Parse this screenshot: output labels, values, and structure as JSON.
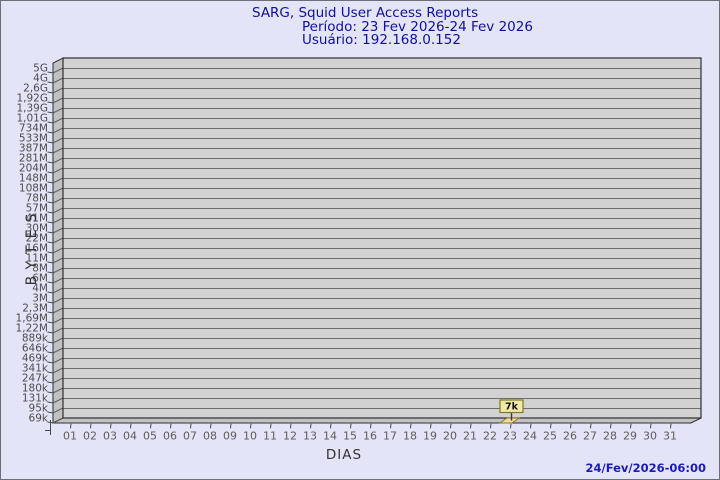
{
  "header": {
    "title": "SARG, Squid User Access Reports",
    "period": "Período: 23 Fev 2026-24 Fev 2026",
    "user": "Usuário: 192.168.0.152"
  },
  "footer": {
    "timestamp": "24/Fev/2026-06:00"
  },
  "chart_data": {
    "type": "bar",
    "title": "SARG, Squid User Access Reports",
    "subtitle": "Período: 23 Fev 2026-24 Fev 2026",
    "user": "Usuário: 192.168.0.152",
    "xlabel": "DIAS",
    "ylabel": "BYTES",
    "y_scale": "logarithmic",
    "ylim_labels": [
      "69k",
      "5G"
    ],
    "grid": "horizontal",
    "style": "3d-bar",
    "x_categories": [
      "01",
      "02",
      "03",
      "04",
      "05",
      "06",
      "07",
      "08",
      "09",
      "10",
      "11",
      "12",
      "13",
      "14",
      "15",
      "16",
      "17",
      "18",
      "19",
      "20",
      "21",
      "22",
      "23",
      "24",
      "25",
      "26",
      "27",
      "28",
      "29",
      "30",
      "31"
    ],
    "y_tick_labels": [
      "5G",
      "4G",
      "2,6G",
      "1,92G",
      "1,39G",
      "1,01G",
      "734M",
      "533M",
      "387M",
      "281M",
      "204M",
      "148M",
      "108M",
      "78M",
      "57M",
      "41M",
      "30M",
      "22M",
      "16M",
      "11M",
      "8M",
      "6M",
      "4M",
      "3M",
      "2,3M",
      "1,69M",
      "1,22M",
      "889k",
      "646k",
      "469k",
      "341k",
      "247k",
      "180k",
      "131k",
      "95k",
      "69k"
    ],
    "values": [
      0,
      0,
      0,
      0,
      0,
      0,
      0,
      0,
      0,
      0,
      0,
      0,
      0,
      0,
      0,
      0,
      0,
      0,
      0,
      0,
      0,
      0,
      7000,
      0,
      0,
      0,
      0,
      0,
      0,
      0,
      0
    ],
    "bars": [
      {
        "day": "23",
        "value_label": "7k",
        "value_bytes": 7000
      }
    ],
    "colors": {
      "background": "#e4e4f8",
      "frame_border": "#6e6e7a",
      "title_text": "#10109a",
      "timestamp_text": "#1b1bb8",
      "plot_background": "#d2d2d2",
      "gridline": "#6e6e6e",
      "plot_edge": "#2e2e2e",
      "wall_fill": "#c2c2c2",
      "bar_fill": "#f2dc9e",
      "bar_stroke": "#8a7520",
      "value_box_fill": "#f1e9a6",
      "value_box_stroke": "#7e7820",
      "axis_label_text": "#4d4d4d"
    }
  }
}
